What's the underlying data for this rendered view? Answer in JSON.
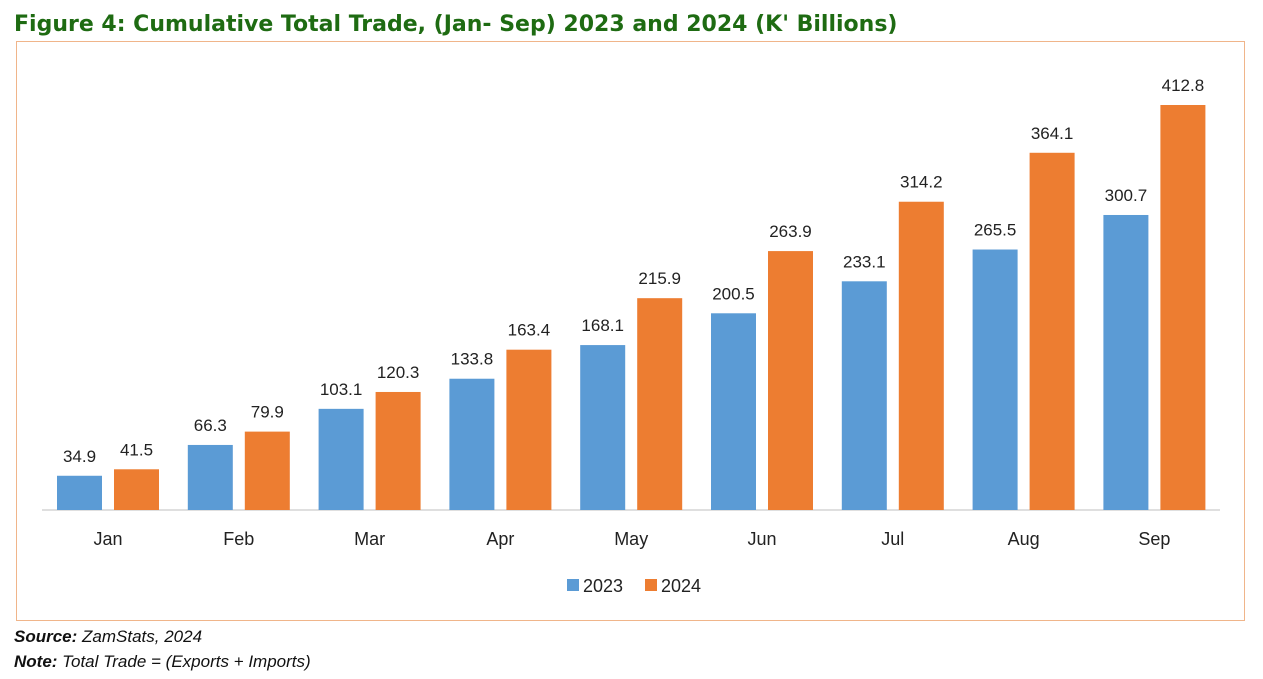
{
  "figure": {
    "title": "Figure 4: Cumulative Total Trade, (Jan- Sep) 2023 and 2024 (K' Billions)"
  },
  "footnotes": {
    "source_label": "Source:",
    "source_text": " ZamStats, 2024",
    "note_label": "Note:",
    "note_text": " Total Trade = (Exports + Imports)"
  },
  "chart_data": {
    "type": "bar",
    "title": "Figure 4: Cumulative Total Trade, (Jan- Sep) 2023 and 2024 (K' Billions)",
    "xlabel": "",
    "ylabel": "",
    "ylim": [
      0,
      440
    ],
    "grid": false,
    "legend_position": "bottom",
    "categories": [
      "Jan",
      "Feb",
      "Mar",
      "Apr",
      "May",
      "Jun",
      "Jul",
      "Aug",
      "Sep"
    ],
    "series": [
      {
        "name": "2023",
        "color": "#5b9bd5",
        "values": [
          34.9,
          66.3,
          103.1,
          133.8,
          168.1,
          200.5,
          233.1,
          265.5,
          300.7
        ]
      },
      {
        "name": "2024",
        "color": "#ed7d31",
        "values": [
          41.5,
          79.9,
          120.3,
          163.4,
          215.9,
          263.9,
          314.2,
          364.1,
          412.8
        ]
      }
    ]
  }
}
